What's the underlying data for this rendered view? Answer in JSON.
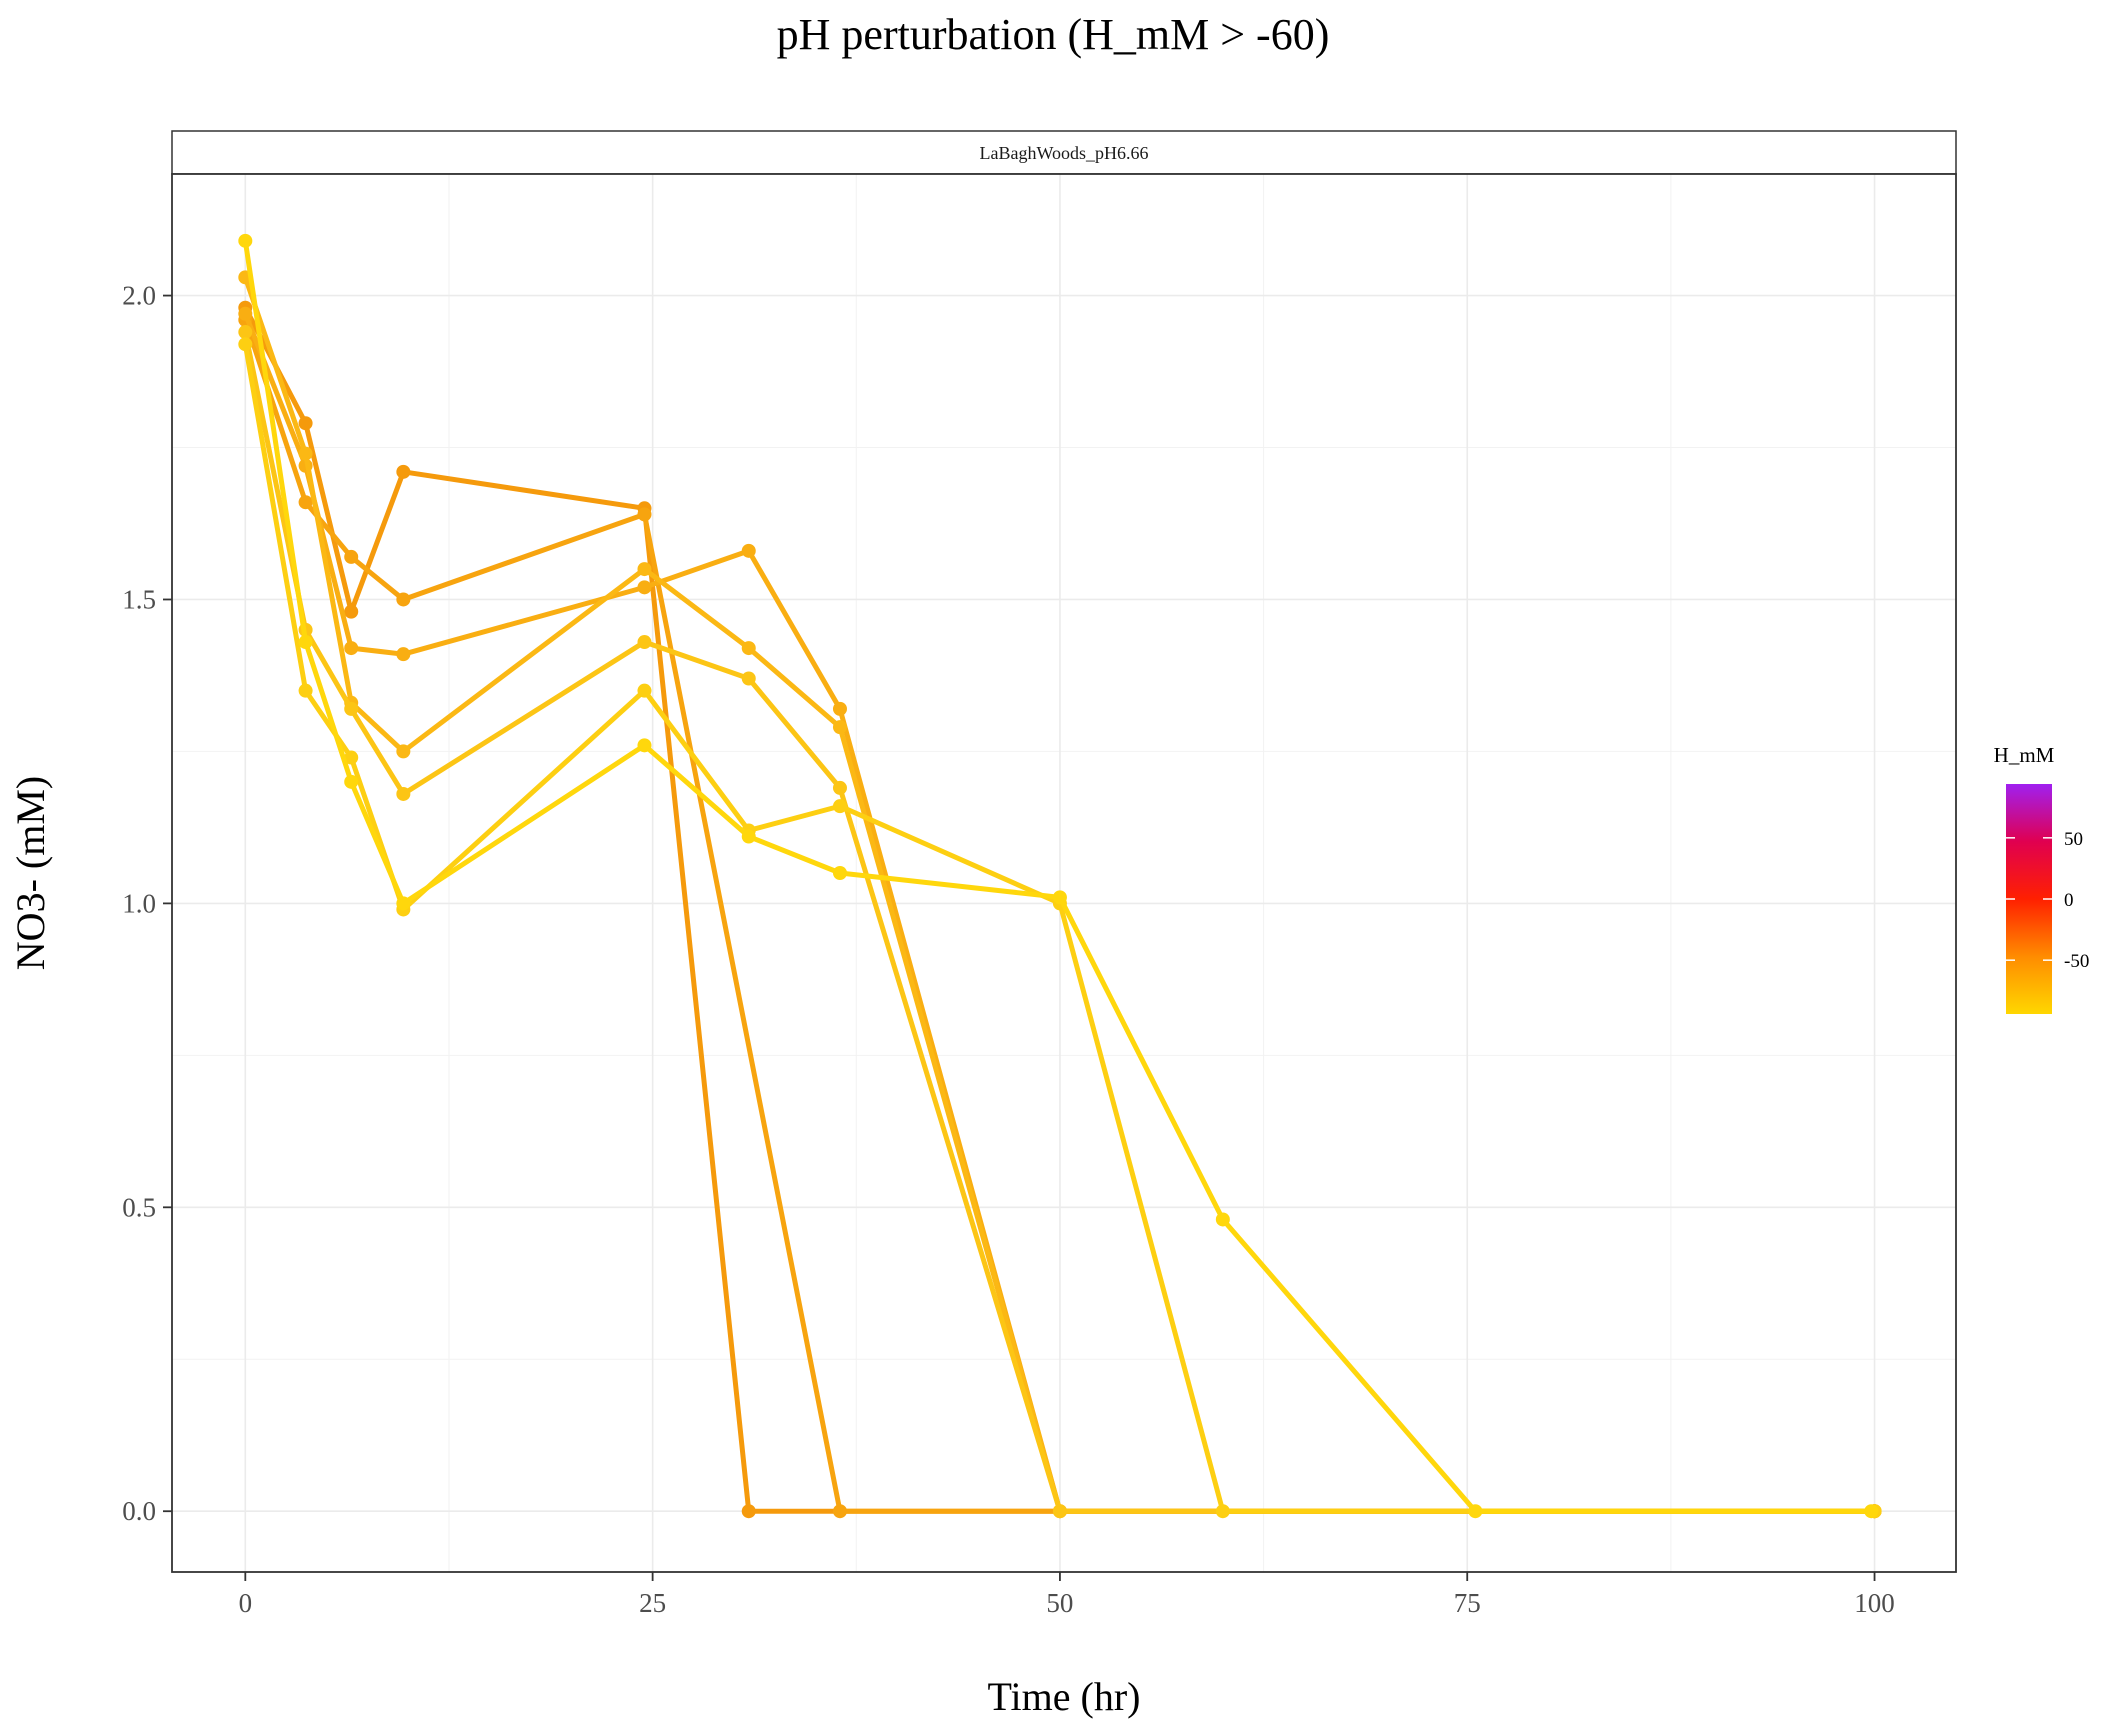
{
  "chart_data": {
    "type": "line",
    "title": "pH perturbation (H_mM > -60)",
    "facet_label": "LaBaghWoods_pH6.66",
    "xlabel": "Time (hr)",
    "ylabel": "NO3- (mM)",
    "xlim": [
      -4.5,
      105
    ],
    "ylim": [
      -0.1,
      2.2
    ],
    "x_ticks": [
      0,
      25,
      50,
      75,
      100
    ],
    "x_tick_labels": [
      "0",
      "25",
      "50",
      "75",
      "100"
    ],
    "y_ticks": [
      0,
      0.5,
      1.0,
      1.5,
      2.0
    ],
    "y_tick_labels": [
      "0.0",
      "0.5",
      "1.0",
      "1.5",
      "2.0"
    ],
    "grid": true,
    "legend": {
      "title": "H_mM",
      "position": "right",
      "type": "colorbar",
      "range": [
        -94,
        94
      ],
      "ticks": [
        50,
        0,
        -50
      ],
      "tick_labels": [
        "50",
        "0",
        "-50"
      ],
      "gradient": [
        "#ffd700",
        "#ff8c00",
        "#ff2000",
        "#e00050",
        "#a020f0"
      ]
    },
    "series": [
      {
        "color": "#f59a0c",
        "x": [
          0,
          3.7,
          6.5,
          9.7,
          24.5,
          30.9,
          100
        ],
        "y": [
          1.98,
          1.79,
          1.48,
          1.71,
          1.65,
          0.0,
          0.0
        ]
      },
      {
        "color": "#f7a40f",
        "x": [
          0,
          3.7,
          6.5,
          9.7,
          24.5,
          36.5,
          100
        ],
        "y": [
          1.96,
          1.66,
          1.57,
          1.5,
          1.64,
          0.0,
          0.0
        ]
      },
      {
        "color": "#f9ae12",
        "x": [
          0,
          3.7,
          6.5,
          9.7,
          24.5,
          30.9,
          36.5,
          50.0,
          100
        ],
        "y": [
          1.97,
          1.72,
          1.42,
          1.41,
          1.52,
          1.58,
          1.32,
          0.0,
          0.0
        ]
      },
      {
        "color": "#fbb814",
        "x": [
          0,
          3.7,
          6.5,
          9.7,
          24.5,
          30.9,
          36.5,
          50.0,
          100
        ],
        "y": [
          2.03,
          1.74,
          1.33,
          1.25,
          1.55,
          1.42,
          1.29,
          0.0,
          0.0
        ]
      },
      {
        "color": "#fcc515",
        "x": [
          0,
          3.7,
          6.5,
          9.7,
          24.5,
          30.9,
          36.5,
          50.0,
          100
        ],
        "y": [
          1.94,
          1.45,
          1.32,
          1.18,
          1.43,
          1.37,
          1.19,
          0.0,
          0.0
        ]
      },
      {
        "color": "#fdcf12",
        "x": [
          0,
          3.7,
          6.5,
          9.7,
          24.5,
          30.9,
          36.5,
          50.0,
          60.0,
          100
        ],
        "y": [
          1.92,
          1.35,
          1.24,
          0.99,
          1.35,
          1.12,
          1.16,
          1.0,
          0.0,
          0.0
        ]
      },
      {
        "color": "#ffd70c",
        "x": [
          0,
          3.7,
          6.5,
          9.7,
          24.5,
          30.9,
          36.5,
          50.0,
          60.0,
          75.5,
          99.8
        ],
        "y": [
          2.09,
          1.43,
          1.2,
          1.0,
          1.26,
          1.11,
          1.05,
          1.01,
          0.48,
          0.0,
          0.0
        ]
      }
    ]
  }
}
